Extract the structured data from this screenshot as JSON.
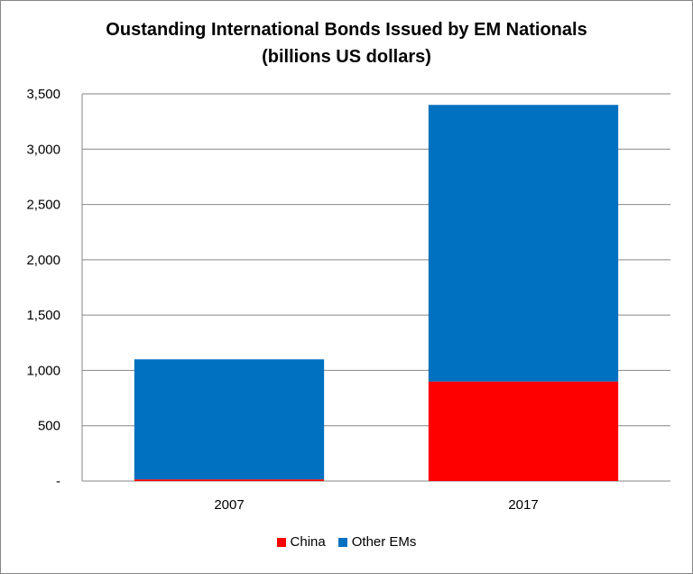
{
  "chart_data": {
    "type": "bar",
    "stacked": true,
    "title": "Oustanding International Bonds Issued by EM Nationals",
    "subtitle": "(billions US dollars)",
    "categories": [
      "2007",
      "2017"
    ],
    "series": [
      {
        "name": "China",
        "color": "#FF0000",
        "values": [
          15,
          900
        ]
      },
      {
        "name": "Other EMs",
        "color": "#0070C0",
        "values": [
          1085,
          2500
        ]
      }
    ],
    "ylim": [
      0,
      3500
    ],
    "yticks": [
      0,
      500,
      1000,
      1500,
      2000,
      2500,
      3000,
      3500
    ],
    "ytick_labels": [
      "-",
      "500",
      "1,000",
      "1,500",
      "2,000",
      "2,500",
      "3,000",
      "3,500"
    ],
    "grid": true,
    "legend_position": "bottom"
  }
}
